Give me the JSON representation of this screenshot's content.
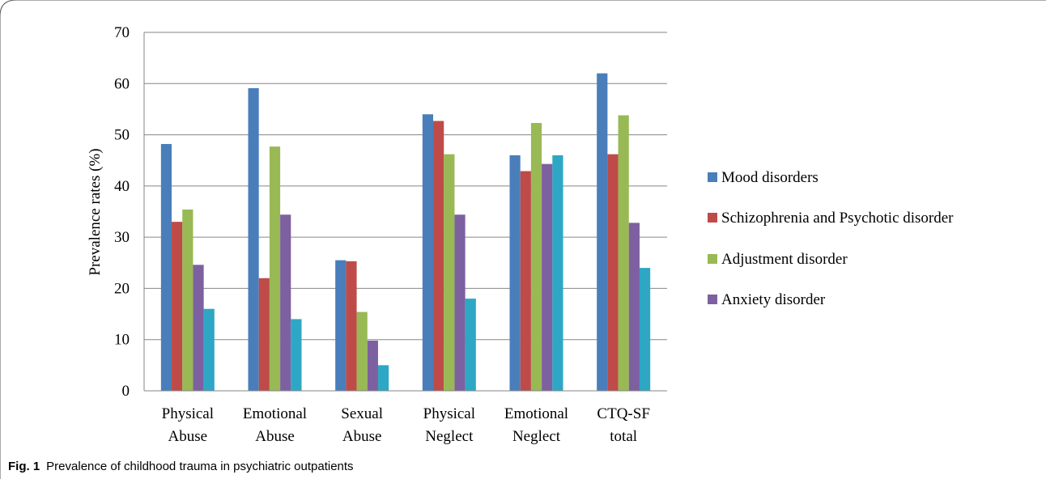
{
  "chart_data": {
    "type": "bar",
    "ylabel": "Prevalence rates (%)",
    "xlabel": "",
    "ylim": [
      0,
      70
    ],
    "yticks": [
      0,
      10,
      20,
      30,
      40,
      50,
      60,
      70
    ],
    "grid": true,
    "legend_position": "right",
    "categories": [
      [
        "Physical",
        "Abuse"
      ],
      [
        "Emotional",
        "Abuse"
      ],
      [
        "Sexual",
        "Abuse"
      ],
      [
        "Physical",
        "Neglect"
      ],
      [
        "Emotional",
        "Neglect"
      ],
      [
        "CTQ-SF",
        "total"
      ]
    ],
    "series": [
      {
        "name": "Mood disorders",
        "color": "#4a7ebb",
        "values": [
          48.2,
          59.1,
          25.5,
          54.0,
          46.0,
          62.0
        ]
      },
      {
        "name": "Schizophrenia and Psychotic disorder",
        "color": "#be4b48",
        "values": [
          33.0,
          22.0,
          25.3,
          52.7,
          42.9,
          46.2
        ]
      },
      {
        "name": "Adjustment disorder",
        "color": "#98b954",
        "values": [
          35.4,
          47.7,
          15.4,
          46.2,
          52.3,
          53.8
        ]
      },
      {
        "name": "Anxiety disorder",
        "color": "#7d60a0",
        "values": [
          24.6,
          34.4,
          9.8,
          34.4,
          44.3,
          32.8
        ]
      },
      {
        "color": "#2ea7c5",
        "values": [
          16.0,
          14.0,
          5.0,
          18.0,
          46.0,
          24.0
        ]
      }
    ]
  },
  "caption": {
    "label": "Fig. 1",
    "text": "Prevalence of childhood trauma in psychiatric outpatients"
  }
}
